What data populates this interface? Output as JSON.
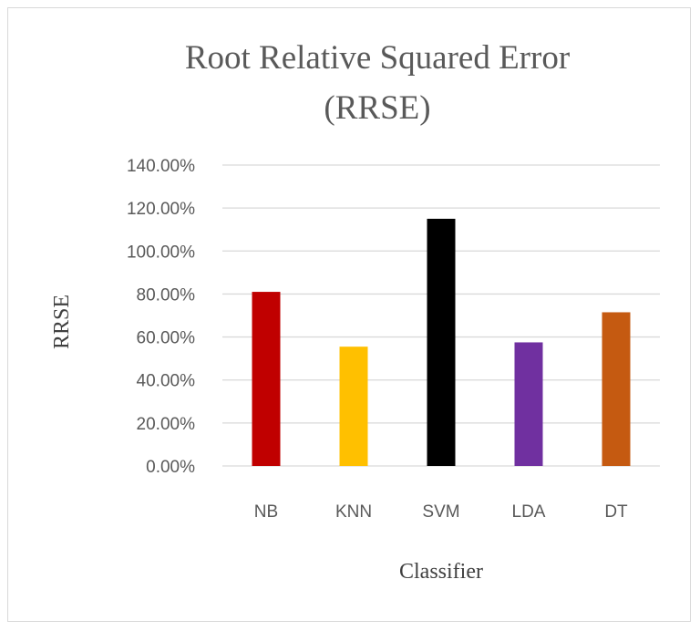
{
  "chart_data": {
    "type": "bar",
    "title_lines": [
      "Root Relative Squared Error",
      "(RRSE)"
    ],
    "xlabel": "Classifier",
    "ylabel": "RRSE",
    "categories": [
      "NB",
      "KNN",
      "SVM",
      "LDA",
      "DT"
    ],
    "values": [
      81,
      55.5,
      115,
      57.5,
      71.5
    ],
    "colors": [
      "#c00000",
      "#ffc000",
      "#000000",
      "#7030a0",
      "#c55a11"
    ],
    "ylim": [
      0,
      140
    ],
    "yticks": [
      0,
      20,
      40,
      60,
      80,
      100,
      120,
      140
    ],
    "ytick_labels": [
      "0.00%",
      "20.00%",
      "40.00%",
      "60.00%",
      "80.00%",
      "100.00%",
      "120.00%",
      "140.00%"
    ],
    "grid": true,
    "legend": "none"
  }
}
